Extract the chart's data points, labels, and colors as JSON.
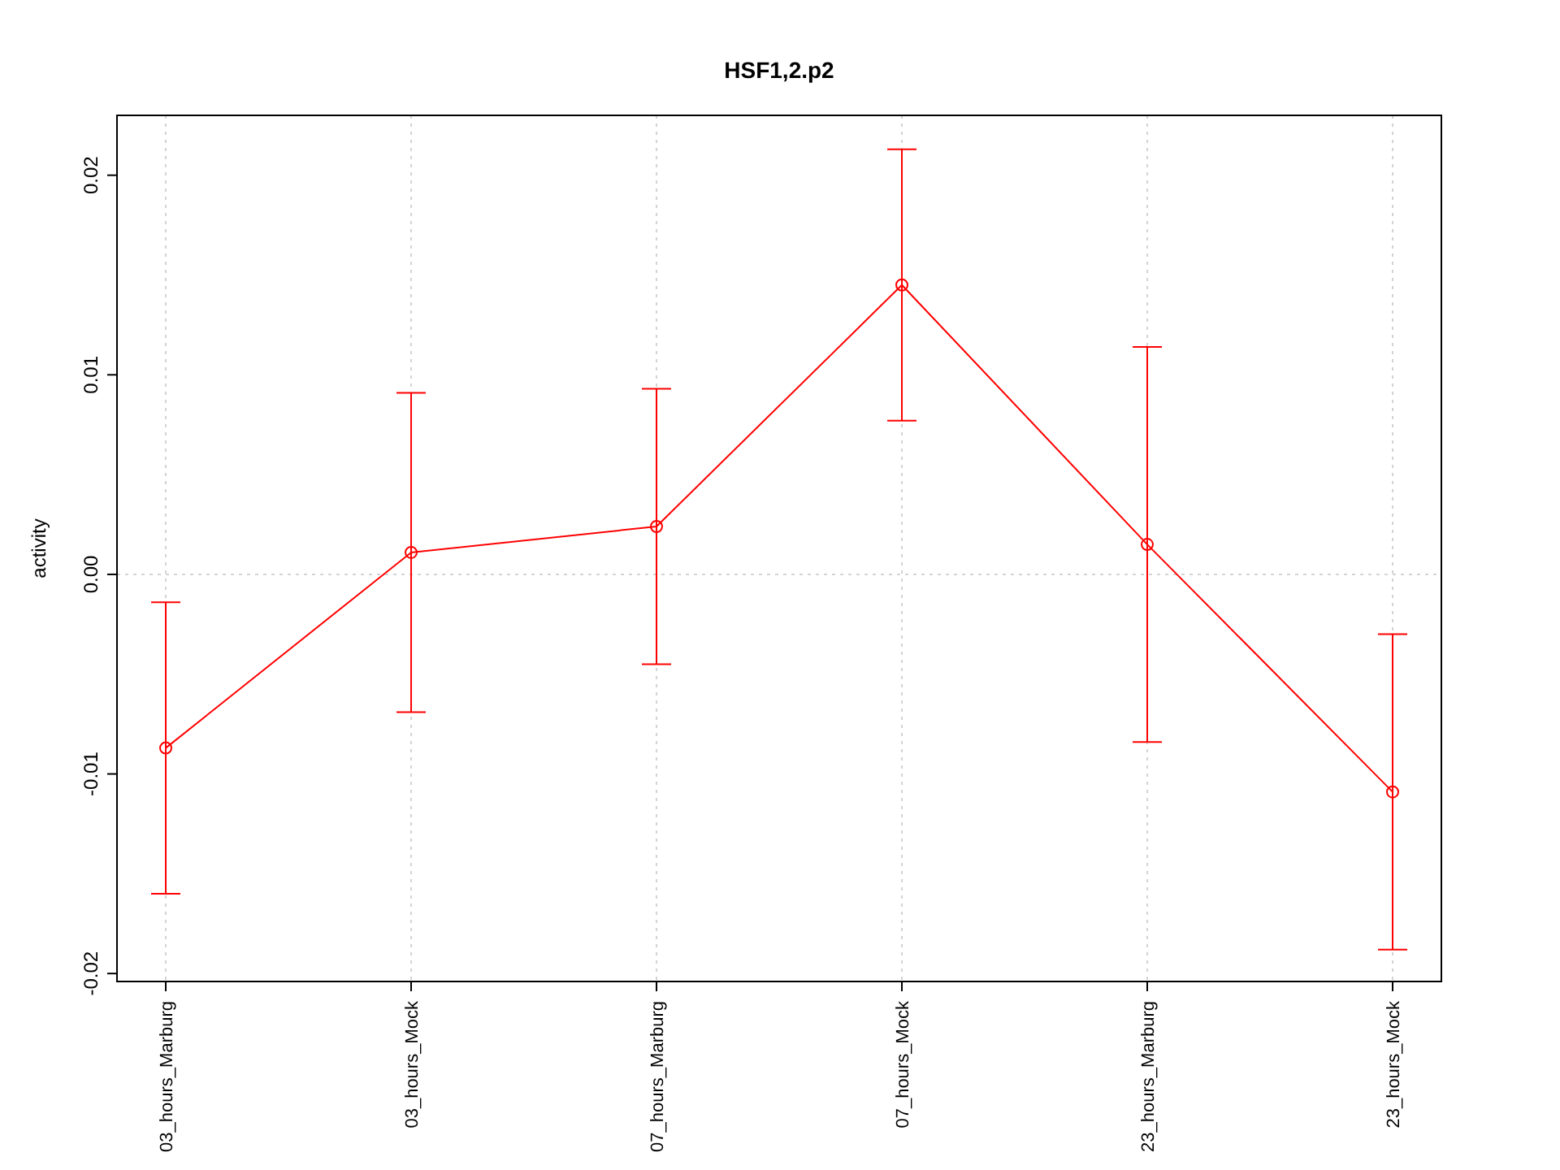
{
  "chart_data": {
    "type": "line",
    "title": "HSF1,2.p2",
    "ylabel": "activity",
    "categories": [
      "03_hours_Marburg",
      "03_hours_Mock",
      "07_hours_Marburg",
      "07_hours_Mock",
      "23_hours_Marburg",
      "23_hours_Mock"
    ],
    "series": [
      {
        "color": "#ff0000",
        "values": [
          -0.0087,
          0.0011,
          0.0024,
          0.0145,
          0.0015,
          -0.0109
        ],
        "errors": [
          0.0073,
          0.008,
          0.0069,
          0.0068,
          0.0099,
          0.0079
        ]
      }
    ],
    "ylim": [
      -0.0204,
      0.023
    ],
    "yticks": [
      -0.02,
      -0.01,
      {
        "value": 0,
        "label": "0.00"
      },
      0.01,
      0.02
    ],
    "grid": "x",
    "marker": "circle",
    "line_style": "solid",
    "ref_lines": [
      {
        "axis": "y",
        "value": 0,
        "color": "#d3d3d3",
        "line_style": "dotted"
      }
    ]
  }
}
